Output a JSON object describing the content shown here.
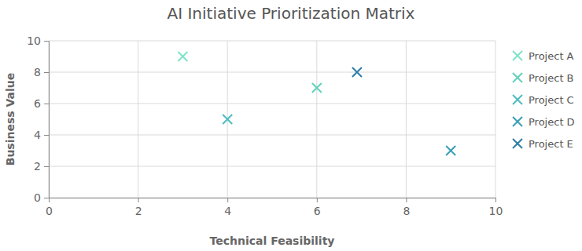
{
  "chart_data": {
    "type": "scatter",
    "title": "AI Initiative Prioritization Matrix",
    "x_label": "Technical Feasibility",
    "y_label": "Business Value",
    "series": [
      {
        "name": "Project A",
        "color": "#7de3c9",
        "marker": "x",
        "x": [
          3
        ],
        "values": [
          9
        ]
      },
      {
        "name": "Project B",
        "color": "#62d1bd",
        "marker": "x",
        "x": [
          6
        ],
        "values": [
          7
        ]
      },
      {
        "name": "Project C",
        "color": "#4dbdc0",
        "marker": "x",
        "x": [
          4
        ],
        "values": [
          5
        ]
      },
      {
        "name": "Project D",
        "color": "#3a9fb8",
        "marker": "x",
        "x": [
          9
        ],
        "values": [
          3
        ]
      },
      {
        "name": "Project E",
        "color": "#2a7ea8",
        "marker": "x",
        "x": [
          6.9
        ],
        "values": [
          8
        ]
      }
    ],
    "xlim": [
      0,
      10
    ],
    "xticks": [
      0,
      2,
      4,
      6,
      8,
      10
    ],
    "ylim": [
      0,
      10
    ],
    "yticks": [
      0,
      2,
      4,
      6,
      8,
      10
    ],
    "grid": true,
    "legend": "right"
  }
}
